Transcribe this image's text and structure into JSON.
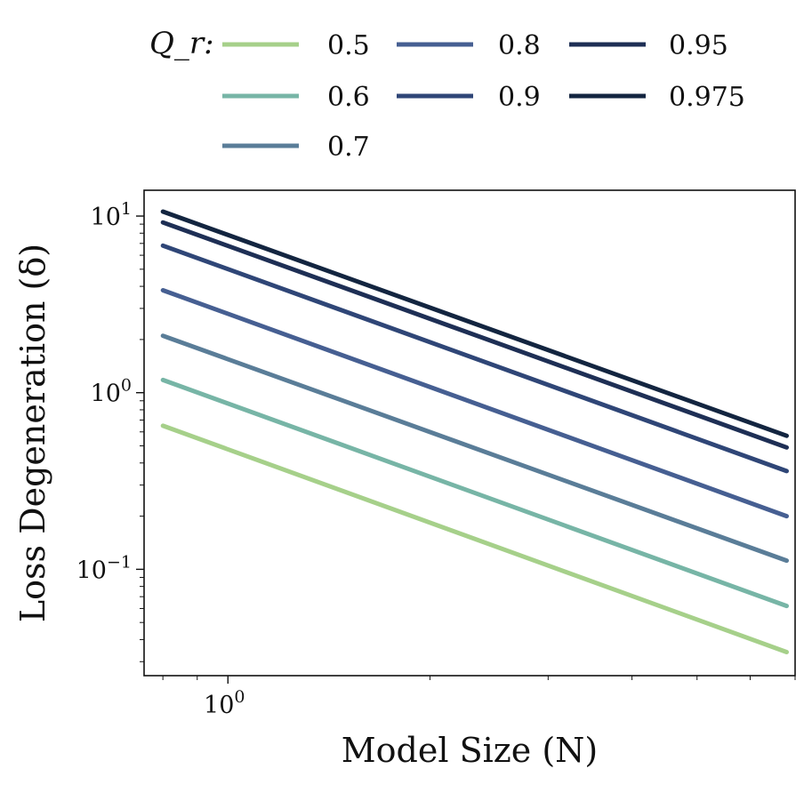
{
  "chart_data": {
    "type": "line",
    "xlabel": "Model Size (N)",
    "ylabel": "Loss Degeneration (δ)",
    "xscale": "log",
    "yscale": "log",
    "xlim": [
      0.75,
      7.0
    ],
    "ylim": [
      0.025,
      14.0
    ],
    "x_ticks": [
      {
        "value": 1,
        "label": "10^0"
      }
    ],
    "y_ticks": [
      {
        "value": 0.1,
        "label": "10^-1"
      },
      {
        "value": 1,
        "label": "10^0"
      },
      {
        "value": 10,
        "label": "10^1"
      }
    ],
    "grid": false,
    "legend": {
      "title": "Q_r:",
      "placement": "top",
      "columns": 3
    },
    "series": [
      {
        "name": "0.5",
        "color": "#a6d08a",
        "x": [
          0.8,
          6.8
        ],
        "y": [
          0.65,
          0.034
        ]
      },
      {
        "name": "0.6",
        "color": "#77b5a6",
        "x": [
          0.8,
          6.8
        ],
        "y": [
          1.18,
          0.062
        ]
      },
      {
        "name": "0.7",
        "color": "#5a7d98",
        "x": [
          0.8,
          6.8
        ],
        "y": [
          2.1,
          0.112
        ]
      },
      {
        "name": "0.8",
        "color": "#465f92",
        "x": [
          0.8,
          6.8
        ],
        "y": [
          3.8,
          0.2
        ]
      },
      {
        "name": "0.9",
        "color": "#2f4677",
        "x": [
          0.8,
          6.8
        ],
        "y": [
          6.8,
          0.36
        ]
      },
      {
        "name": "0.95",
        "color": "#1e2f55",
        "x": [
          0.8,
          6.8
        ],
        "y": [
          9.2,
          0.49
        ]
      },
      {
        "name": "0.975",
        "color": "#132540",
        "x": [
          0.8,
          6.8
        ],
        "y": [
          10.6,
          0.57
        ]
      }
    ]
  }
}
